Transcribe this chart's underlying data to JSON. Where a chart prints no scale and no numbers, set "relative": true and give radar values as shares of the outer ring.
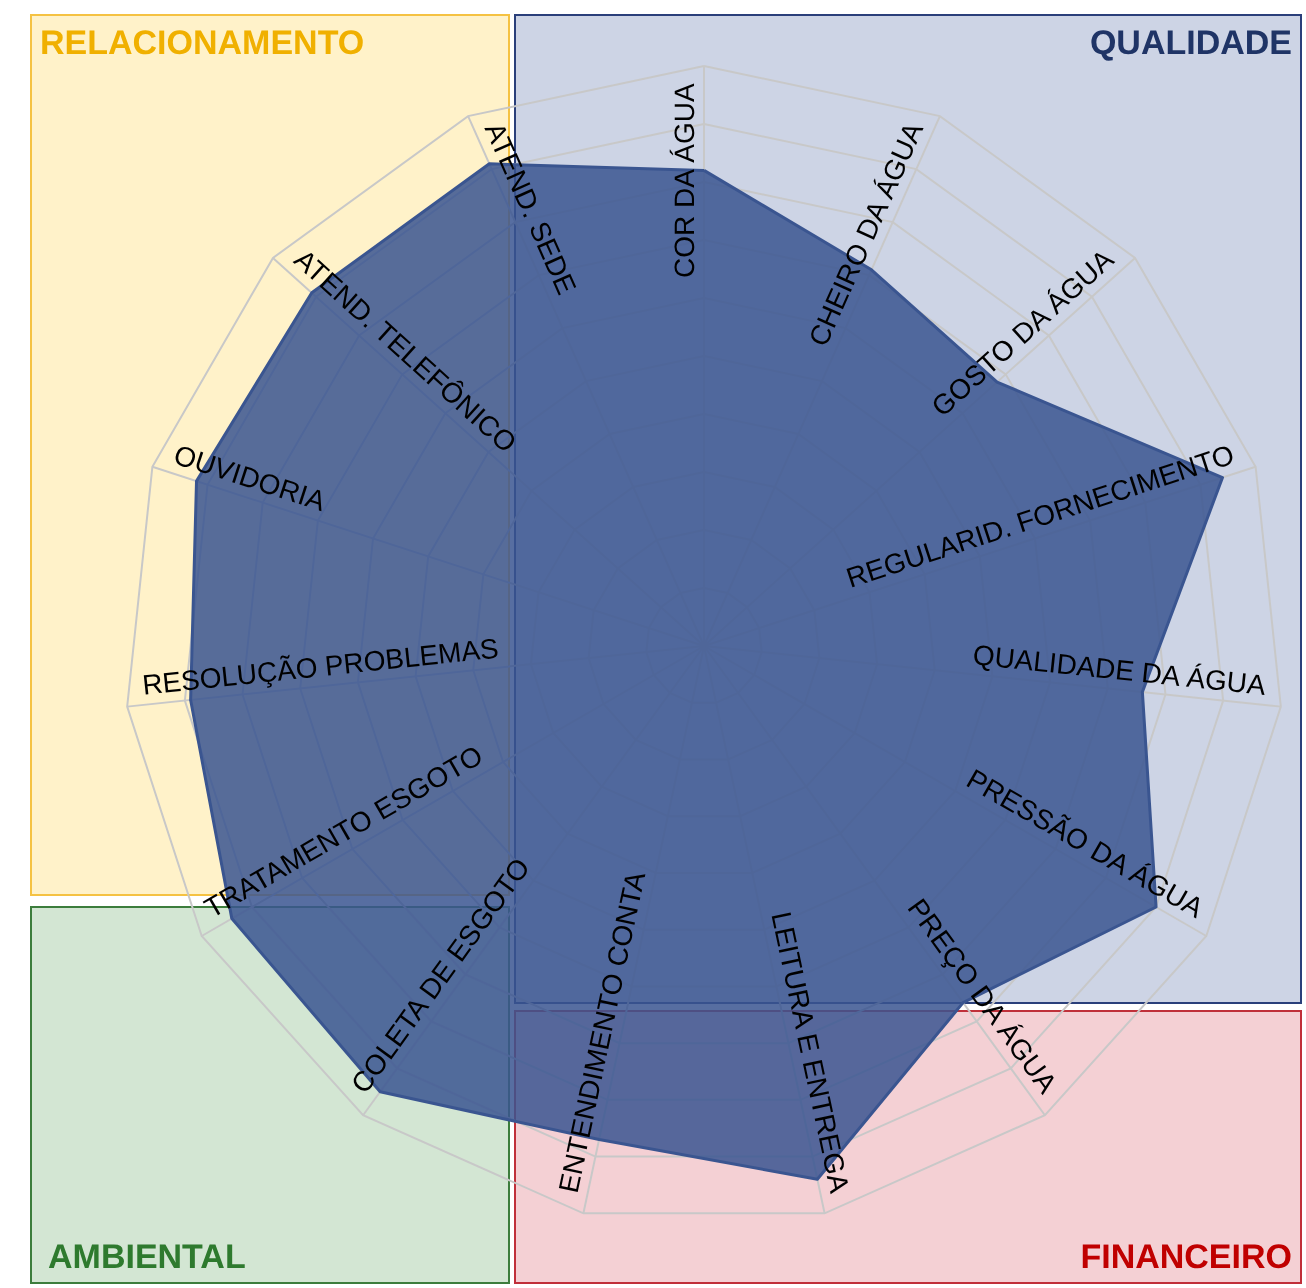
{
  "chart_data": {
    "type": "radar",
    "relative": true,
    "grid": true,
    "categories": [
      "COR DA ÁGUA",
      "CHEIRO DA ÁGUA",
      "GOSTO DA ÁGUA",
      "REGULARID. FORNECIMENTO",
      "QUALIDADE DA ÁGUA",
      "PRESSÃO DA ÁGUA",
      "PREÇO DA ÁGUA",
      "LEITURA E ENTREGA",
      "ENTENDIMENTO CONTA",
      "COLETA DE ESGOTO",
      "TRATAMENTO ESGOTO",
      "RESOLUÇÃO PROBLEMAS",
      "OUVIDORIA",
      "ATEND. TELEFÔNICO",
      "ATEND. SEDE"
    ],
    "series": [
      {
        "color": "#3a5590",
        "values": [
          0.82,
          0.71,
          0.68,
          0.94,
          0.76,
          0.9,
          0.76,
          0.94,
          0.87,
          0.95,
          0.94,
          0.89,
          0.92,
          0.91,
          0.91
        ]
      }
    ],
    "annotations": [
      "RELACIONAMENTO",
      "QUALIDADE",
      "AMBIENTAL",
      "FINANCEIRO"
    ]
  }
}
